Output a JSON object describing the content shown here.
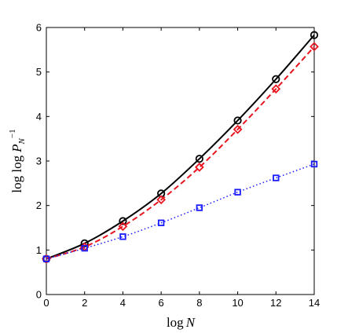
{
  "chart_data": {
    "type": "line",
    "xlabel": "log N",
    "ylabel": "log log P_N^{-1}",
    "xlim": [
      0,
      14
    ],
    "ylim": [
      0,
      6
    ],
    "xticks": [
      0,
      2,
      4,
      6,
      8,
      10,
      12,
      14
    ],
    "yticks": [
      0,
      1,
      2,
      3,
      4,
      5,
      6
    ],
    "grid": false,
    "legend": "none",
    "series": [
      {
        "color": "#000000",
        "line_style": "solid",
        "marker": "circle",
        "x": [
          0,
          2,
          4,
          6,
          8,
          10,
          12,
          14
        ],
        "y": [
          0.8,
          1.15,
          1.65,
          2.27,
          3.05,
          3.91,
          4.84,
          5.83
        ]
      },
      {
        "color": "#e8141e",
        "line_style": "dashed",
        "marker": "diamond",
        "x": [
          0,
          2,
          4,
          6,
          8,
          10,
          12,
          14
        ],
        "y": [
          0.8,
          1.07,
          1.53,
          2.13,
          2.86,
          3.71,
          4.62,
          5.57
        ]
      },
      {
        "color": "#1a1aff",
        "line_style": "dotted",
        "marker": "square",
        "x": [
          0,
          2,
          4,
          6,
          8,
          10,
          12,
          14
        ],
        "y": [
          0.8,
          1.04,
          1.3,
          1.61,
          1.95,
          2.3,
          2.62,
          2.93
        ]
      }
    ]
  }
}
